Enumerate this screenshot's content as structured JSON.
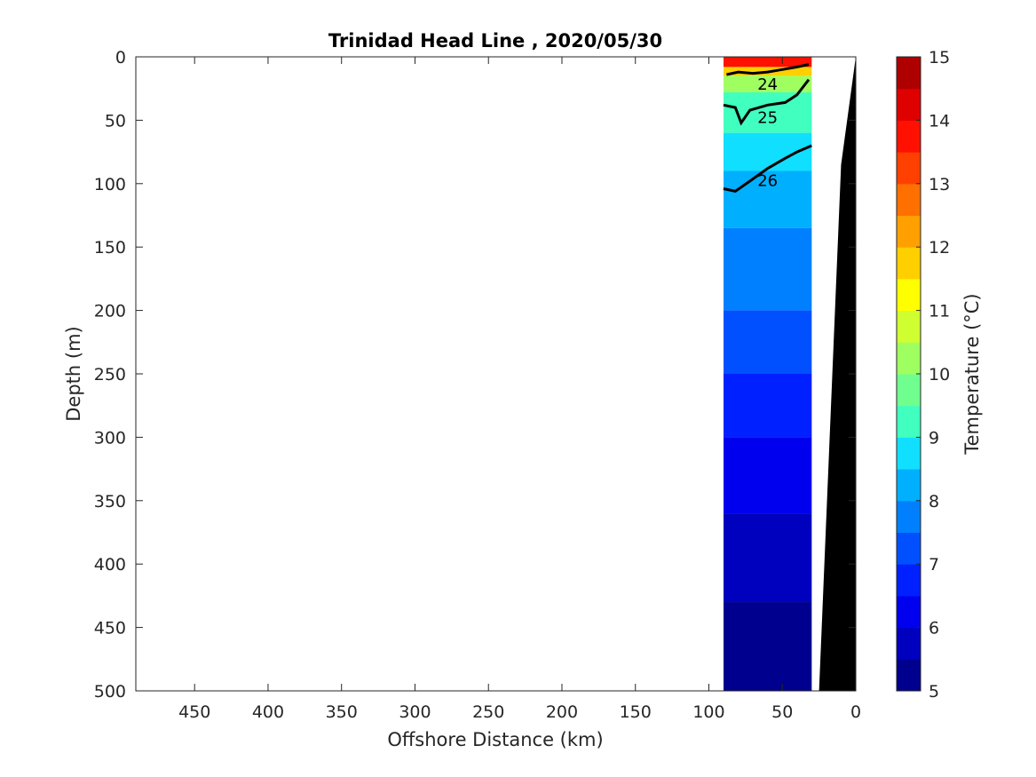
{
  "chart_data": {
    "type": "contour",
    "title": "Trinidad Head Line , 2020/05/30",
    "xlabel": "Offshore Distance (km)",
    "ylabel": "Depth (m)",
    "xlim": [
      490,
      0
    ],
    "ylim": [
      0,
      500
    ],
    "x_reversed": true,
    "y_reversed": true,
    "xticks": [
      450,
      400,
      350,
      300,
      250,
      200,
      150,
      100,
      50,
      0
    ],
    "yticks": [
      0,
      50,
      100,
      150,
      200,
      250,
      300,
      350,
      400,
      450,
      500
    ],
    "colorbar": {
      "label": "Temperature (°C)",
      "range": [
        5,
        15
      ],
      "ticks": [
        5,
        6,
        7,
        8,
        9,
        10,
        11,
        12,
        13,
        14,
        15
      ],
      "levels": [
        5,
        5.5,
        6,
        6.5,
        7,
        7.5,
        8,
        8.5,
        9,
        9.5,
        10,
        10.5,
        11,
        11.5,
        12,
        12.5,
        13,
        13.5,
        14,
        14.5,
        15
      ],
      "colors": [
        "#00008f",
        "#0000bf",
        "#0000ef",
        "#0020ff",
        "#0050ff",
        "#0080ff",
        "#00b0ff",
        "#10dfff",
        "#40ffbf",
        "#70ff8f",
        "#9fff60",
        "#cfff30",
        "#ffff00",
        "#ffcf00",
        "#ffa000",
        "#ff7000",
        "#ff4000",
        "#ff1000",
        "#df0000",
        "#af0000"
      ]
    },
    "data_extent": {
      "x": [
        90,
        30
      ],
      "y": [
        0,
        500
      ]
    },
    "temperature_bands": [
      {
        "depth": [
          0,
          8
        ],
        "temp": 13.5
      },
      {
        "depth": [
          8,
          15
        ],
        "temp": 11.5
      },
      {
        "depth": [
          15,
          28
        ],
        "temp": 10.0
      },
      {
        "depth": [
          28,
          60
        ],
        "temp": 9.2
      },
      {
        "depth": [
          60,
          90
        ],
        "temp": 8.7
      },
      {
        "depth": [
          90,
          135
        ],
        "temp": 8.2
      },
      {
        "depth": [
          135,
          200
        ],
        "temp": 7.7
      },
      {
        "depth": [
          200,
          250
        ],
        "temp": 7.2
      },
      {
        "depth": [
          250,
          300
        ],
        "temp": 6.7
      },
      {
        "depth": [
          300,
          360
        ],
        "temp": 6.2
      },
      {
        "depth": [
          360,
          430
        ],
        "temp": 5.8
      },
      {
        "depth": [
          430,
          500
        ],
        "temp": 5.3
      }
    ],
    "density_contours": [
      {
        "label": "24",
        "bold": true,
        "points": [
          [
            88,
            14
          ],
          [
            80,
            12
          ],
          [
            70,
            13
          ],
          [
            60,
            12
          ],
          [
            50,
            10
          ],
          [
            40,
            8
          ],
          [
            32,
            6
          ]
        ]
      },
      {
        "label": "25",
        "bold": true,
        "points": [
          [
            90,
            38
          ],
          [
            82,
            40
          ],
          [
            78,
            52
          ],
          [
            72,
            42
          ],
          [
            60,
            38
          ],
          [
            48,
            36
          ],
          [
            40,
            30
          ],
          [
            32,
            18
          ]
        ]
      },
      {
        "label": "26",
        "bold": true,
        "points": [
          [
            90,
            104
          ],
          [
            82,
            106
          ],
          [
            72,
            98
          ],
          [
            60,
            88
          ],
          [
            48,
            80
          ],
          [
            40,
            75
          ],
          [
            30,
            70
          ]
        ]
      }
    ],
    "bathymetry_x": [
      [
        0,
        0
      ],
      [
        10,
        85
      ],
      [
        25,
        500
      ]
    ]
  }
}
